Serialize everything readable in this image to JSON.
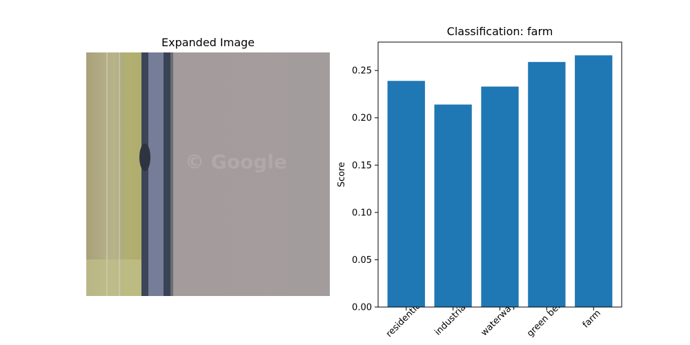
{
  "left_panel": {
    "title": "Expanded Image",
    "watermark": "© Google"
  },
  "chart_data": {
    "type": "bar",
    "title": "Classification: farm",
    "xlabel": "",
    "ylabel": "Score",
    "categories": [
      "residential",
      "industrial",
      "waterway",
      "green belt",
      "farm"
    ],
    "values": [
      0.239,
      0.214,
      0.233,
      0.259,
      0.266
    ],
    "ylim": [
      0,
      0.28
    ],
    "yticks": [
      "0.00",
      "0.05",
      "0.10",
      "0.15",
      "0.20",
      "0.25"
    ],
    "bar_color": "#1f77b4",
    "grid": false
  }
}
